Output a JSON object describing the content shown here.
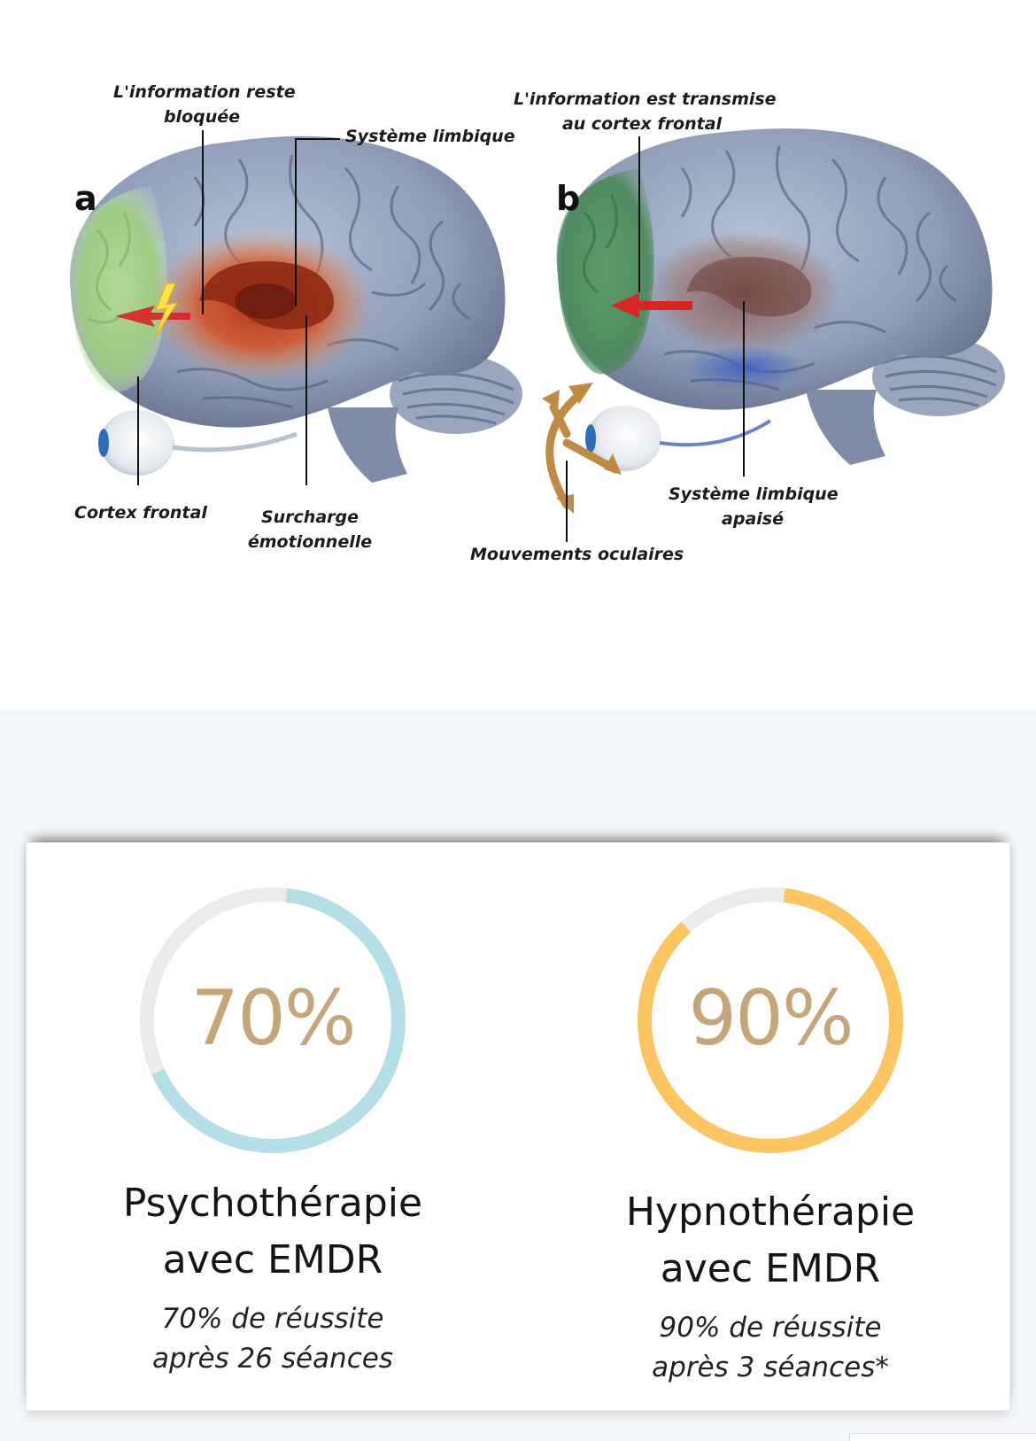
{
  "diagram": {
    "panel_a": {
      "letter": "a",
      "label_blocked_1": "L'information reste",
      "label_blocked_2": "bloquée",
      "label_limbic": "Système limbique",
      "label_cortex": "Cortex frontal",
      "label_overload_1": "Surcharge",
      "label_overload_2": "émotionnelle"
    },
    "panel_b": {
      "letter": "b",
      "label_transmitted_1": "L'information est transmise",
      "label_transmitted_2": "au cortex frontal",
      "label_limbic_calm_1": "Système limbique",
      "label_limbic_calm_2": "apaisé",
      "label_eye_movements": "Mouvements oculaires"
    },
    "colors": {
      "brain": "#8f9db8",
      "frontal_cortex": "#9fcf7f",
      "limbic_overload": "#c0431f",
      "limbic_calm": "#8a5a52",
      "arrow": "#d92424",
      "eye_arrows": "#c08a45"
    }
  },
  "stats": [
    {
      "percent_label": "70%",
      "value": 0.7,
      "ring_color": "#b5dfe6",
      "title_1": "Psychothérapie",
      "title_2": "avec EMDR",
      "subtitle_1": "70% de réussite",
      "subtitle_2": "après 26 séances"
    },
    {
      "percent_label": "90%",
      "value": 0.9,
      "ring_color": "#fcc562",
      "title_1": "Hypnothérapie",
      "title_2": "avec EMDR",
      "subtitle_1": "90% de réussite",
      "subtitle_2": "après 3 séances*"
    }
  ]
}
